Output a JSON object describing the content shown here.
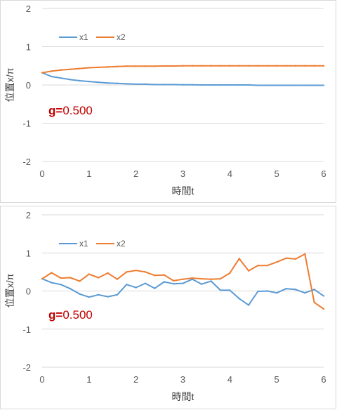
{
  "colors": {
    "x1": "#5b9bd5",
    "x2": "#ed7d31",
    "grid": "#d9d9d9",
    "annotation": "#c00000"
  },
  "chart_data": [
    {
      "type": "line",
      "xlabel": "時間t",
      "ylabel": "位置x/π",
      "xlim": [
        0,
        6
      ],
      "ylim": [
        -2,
        2
      ],
      "x_ticks": [
        "0",
        "1",
        "2",
        "3",
        "4",
        "5",
        "6"
      ],
      "y_ticks": [
        "2",
        "1",
        "0",
        "-1",
        "-2"
      ],
      "grid": "horizontal",
      "legend_position": "top-left",
      "annotation": {
        "label": "g",
        "eq": "=",
        "value": "0.500"
      },
      "x": [
        0,
        0.2,
        0.4,
        0.6,
        0.8,
        1.0,
        1.2,
        1.4,
        1.6,
        1.8,
        2.0,
        2.2,
        2.4,
        2.6,
        2.8,
        3.0,
        3.2,
        3.4,
        3.6,
        3.8,
        4.0,
        4.2,
        4.4,
        4.6,
        4.8,
        5.0,
        5.2,
        5.4,
        5.6,
        5.8,
        6.0
      ],
      "series": [
        {
          "name": "x1",
          "values": [
            0.32,
            0.22,
            0.18,
            0.14,
            0.11,
            0.09,
            0.07,
            0.05,
            0.04,
            0.03,
            0.02,
            0.02,
            0.01,
            0.01,
            0.01,
            0.005,
            0.005,
            0.0,
            0.0,
            0.0,
            0.0,
            0.0,
            0.0,
            -0.01,
            -0.01,
            -0.01,
            -0.01,
            -0.01,
            -0.01,
            -0.01,
            -0.01
          ]
        },
        {
          "name": "x2",
          "values": [
            0.32,
            0.36,
            0.39,
            0.41,
            0.43,
            0.45,
            0.46,
            0.47,
            0.48,
            0.49,
            0.49,
            0.49,
            0.49,
            0.495,
            0.495,
            0.5,
            0.5,
            0.5,
            0.5,
            0.5,
            0.5,
            0.5,
            0.5,
            0.5,
            0.5,
            0.5,
            0.5,
            0.5,
            0.5,
            0.5,
            0.5
          ]
        }
      ]
    },
    {
      "type": "line",
      "xlabel": "時間t",
      "ylabel": "位置x/π",
      "xlim": [
        0,
        6
      ],
      "ylim": [
        -2,
        2
      ],
      "x_ticks": [
        "0",
        "1",
        "2",
        "3",
        "4",
        "5",
        "6"
      ],
      "y_ticks": [
        "2",
        "1",
        "0",
        "-1",
        "-2"
      ],
      "grid": "horizontal",
      "legend_position": "top-left",
      "annotation": {
        "label": "g",
        "eq": "=",
        "value": "0.500"
      },
      "x": [
        0,
        0.2,
        0.4,
        0.6,
        0.8,
        1.0,
        1.2,
        1.4,
        1.6,
        1.8,
        2.0,
        2.2,
        2.4,
        2.6,
        2.8,
        3.0,
        3.2,
        3.4,
        3.6,
        3.8,
        4.0,
        4.2,
        4.4,
        4.6,
        4.8,
        5.0,
        5.2,
        5.4,
        5.6,
        5.8,
        6.0
      ],
      "series": [
        {
          "name": "x1",
          "values": [
            0.32,
            0.22,
            0.17,
            0.06,
            -0.08,
            -0.16,
            -0.1,
            -0.15,
            -0.1,
            0.17,
            0.09,
            0.2,
            0.07,
            0.24,
            0.19,
            0.2,
            0.31,
            0.18,
            0.26,
            0.02,
            0.02,
            -0.2,
            -0.37,
            -0.01,
            0.0,
            -0.05,
            0.06,
            0.04,
            -0.05,
            0.04,
            -0.13
          ]
        },
        {
          "name": "x2",
          "values": [
            0.32,
            0.48,
            0.34,
            0.35,
            0.26,
            0.44,
            0.35,
            0.47,
            0.31,
            0.5,
            0.54,
            0.5,
            0.41,
            0.42,
            0.27,
            0.31,
            0.34,
            0.32,
            0.31,
            0.32,
            0.47,
            0.85,
            0.53,
            0.67,
            0.67,
            0.76,
            0.86,
            0.84,
            0.97,
            -0.3,
            -0.47
          ]
        }
      ]
    }
  ]
}
